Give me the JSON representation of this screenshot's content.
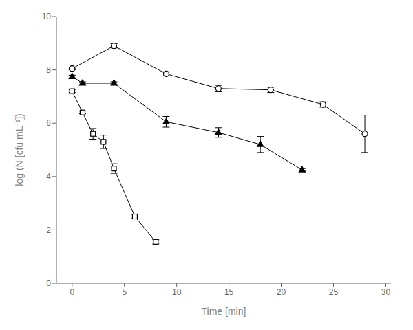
{
  "chart_data": {
    "type": "line",
    "title": "",
    "xlabel": "Time [min]",
    "ylabel": "log (N [cfu mL⁻¹])",
    "xlim": [
      -1.5,
      30.5
    ],
    "ylim": [
      0,
      10
    ],
    "xticks": [
      0,
      5,
      10,
      15,
      20,
      25,
      30
    ],
    "yticks": [
      0,
      2,
      4,
      6,
      8,
      10
    ],
    "grid": false,
    "series": [
      {
        "color": "#000000",
        "marker": "open-circle",
        "x": [
          0,
          0,
          4,
          9,
          14,
          19,
          24,
          28
        ],
        "values": [
          8.05,
          8.05,
          8.9,
          7.85,
          7.3,
          7.25,
          6.7,
          5.6
        ],
        "errors": [
          0.0,
          0.05,
          0.08,
          0.08,
          0.12,
          0.1,
          0.1,
          0.7
        ]
      },
      {
        "color": "#000000",
        "marker": "filled-triangle",
        "x": [
          0,
          1,
          4,
          9,
          14,
          18,
          22
        ],
        "values": [
          7.75,
          7.5,
          7.5,
          6.05,
          5.65,
          5.2,
          4.25
        ],
        "errors": [
          0.05,
          0.05,
          0.05,
          0.2,
          0.18,
          0.3,
          0.05
        ]
      },
      {
        "color": "#000000",
        "marker": "open-square",
        "x": [
          0,
          1,
          2,
          3,
          4,
          6,
          8
        ],
        "values": [
          7.2,
          6.4,
          5.6,
          5.3,
          4.3,
          2.5,
          1.55
        ],
        "errors": [
          0.05,
          0.05,
          0.2,
          0.25,
          0.18,
          0.08,
          0.08
        ]
      }
    ]
  }
}
